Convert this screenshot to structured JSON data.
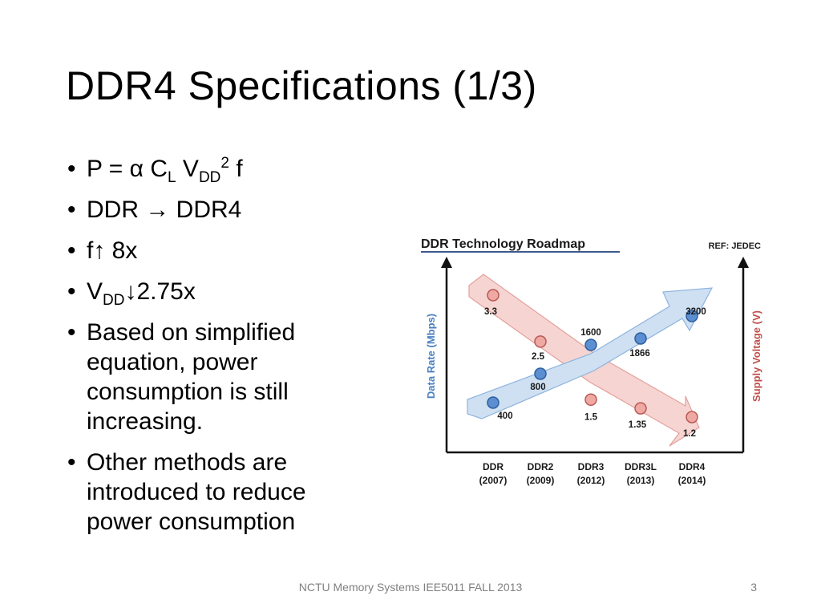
{
  "slide": {
    "title": "DDR4 Specifications (1/3)",
    "footer": "NCTU Memory Systems IEE5011 FALL 2013",
    "page_number": "3"
  },
  "bullets": {
    "b1": {
      "pre": "P = α C",
      "sub1": "L",
      "mid": " V",
      "sub2": "DD",
      "sup": "2",
      "post": " f"
    },
    "b2": "DDR → DDR4",
    "b3": "f↑ 8x",
    "b4": {
      "pre": "V",
      "sub": "DD",
      "post": "↓2.75x"
    },
    "b5": "Based on simplified equation, power consumption is still increasing.",
    "b6": "Other methods are introduced to reduce power consumption"
  },
  "chart_data": {
    "type": "line",
    "title": "DDR Technology Roadmap",
    "ref": "REF: JEDEC",
    "ylabel": "Data Rate (Mbps)",
    "ylabel_right": "Supply Voltage (V)",
    "categories": [
      "DDR\n(2007)",
      "DDR2\n(2009)",
      "DDR3\n(2012)",
      "DDR3L\n(2013)",
      "DDR4\n(2014)"
    ],
    "category_names": [
      "DDR",
      "DDR2",
      "DDR3",
      "DDR3L",
      "DDR4"
    ],
    "category_years": [
      "(2007)",
      "(2009)",
      "(2012)",
      "(2013)",
      "(2014)"
    ],
    "series": [
      {
        "values": [
          400,
          800,
          1600,
          1866,
          3200
        ],
        "labels": [
          "400",
          "800",
          "1600",
          "1866",
          "3200"
        ],
        "color": "#4a7fc1",
        "axis": "left"
      },
      {
        "values": [
          3.3,
          2.5,
          1.5,
          1.35,
          1.2
        ],
        "labels": [
          "3.3",
          "2.5",
          "1.5",
          "1.35",
          "1.2"
        ],
        "color": "#e8928c",
        "axis": "right"
      }
    ],
    "colors": {
      "title_underline": "#3c5a8c",
      "ylabel_left": "#4a7fc1",
      "ylabel_right": "#c0504d",
      "arrow_blue": "#cfe0f2",
      "arrow_red": "#f6d4d2"
    }
  }
}
